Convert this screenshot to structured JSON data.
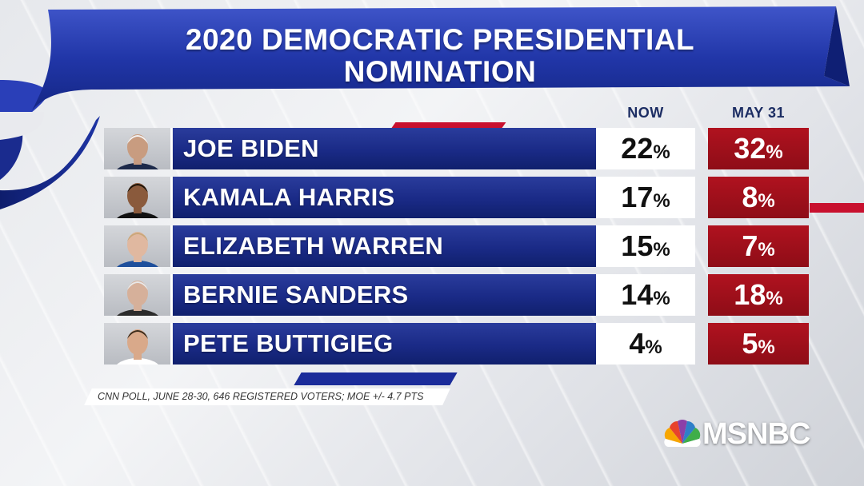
{
  "chart_data": {
    "type": "table",
    "title": "2020 DEMOCRATIC PRESIDENTIAL NOMINATION",
    "title_lines": [
      "2020 DEMOCRATIC PRESIDENTIAL",
      "NOMINATION"
    ],
    "columns": [
      "NOW",
      "MAY 31"
    ],
    "rows": [
      {
        "name": "JOE BIDEN",
        "now": 22,
        "may31": 32
      },
      {
        "name": "KAMALA HARRIS",
        "now": 17,
        "may31": 8
      },
      {
        "name": "ELIZABETH WARREN",
        "now": 15,
        "may31": 7
      },
      {
        "name": "BERNIE SANDERS",
        "now": 14,
        "may31": 18
      },
      {
        "name": "PETE BUTTIGIEG",
        "now": 4,
        "may31": 5
      }
    ],
    "unit": "%",
    "source": "CNN POLL, JUNE 28-30, 646 REGISTERED VOTERS; MOE +/- 4.7 PTS"
  },
  "brand": {
    "logo_text": "MSNBC",
    "blue": "#1a2a86",
    "red": "#a3101c",
    "icon": "peacock-icon"
  }
}
